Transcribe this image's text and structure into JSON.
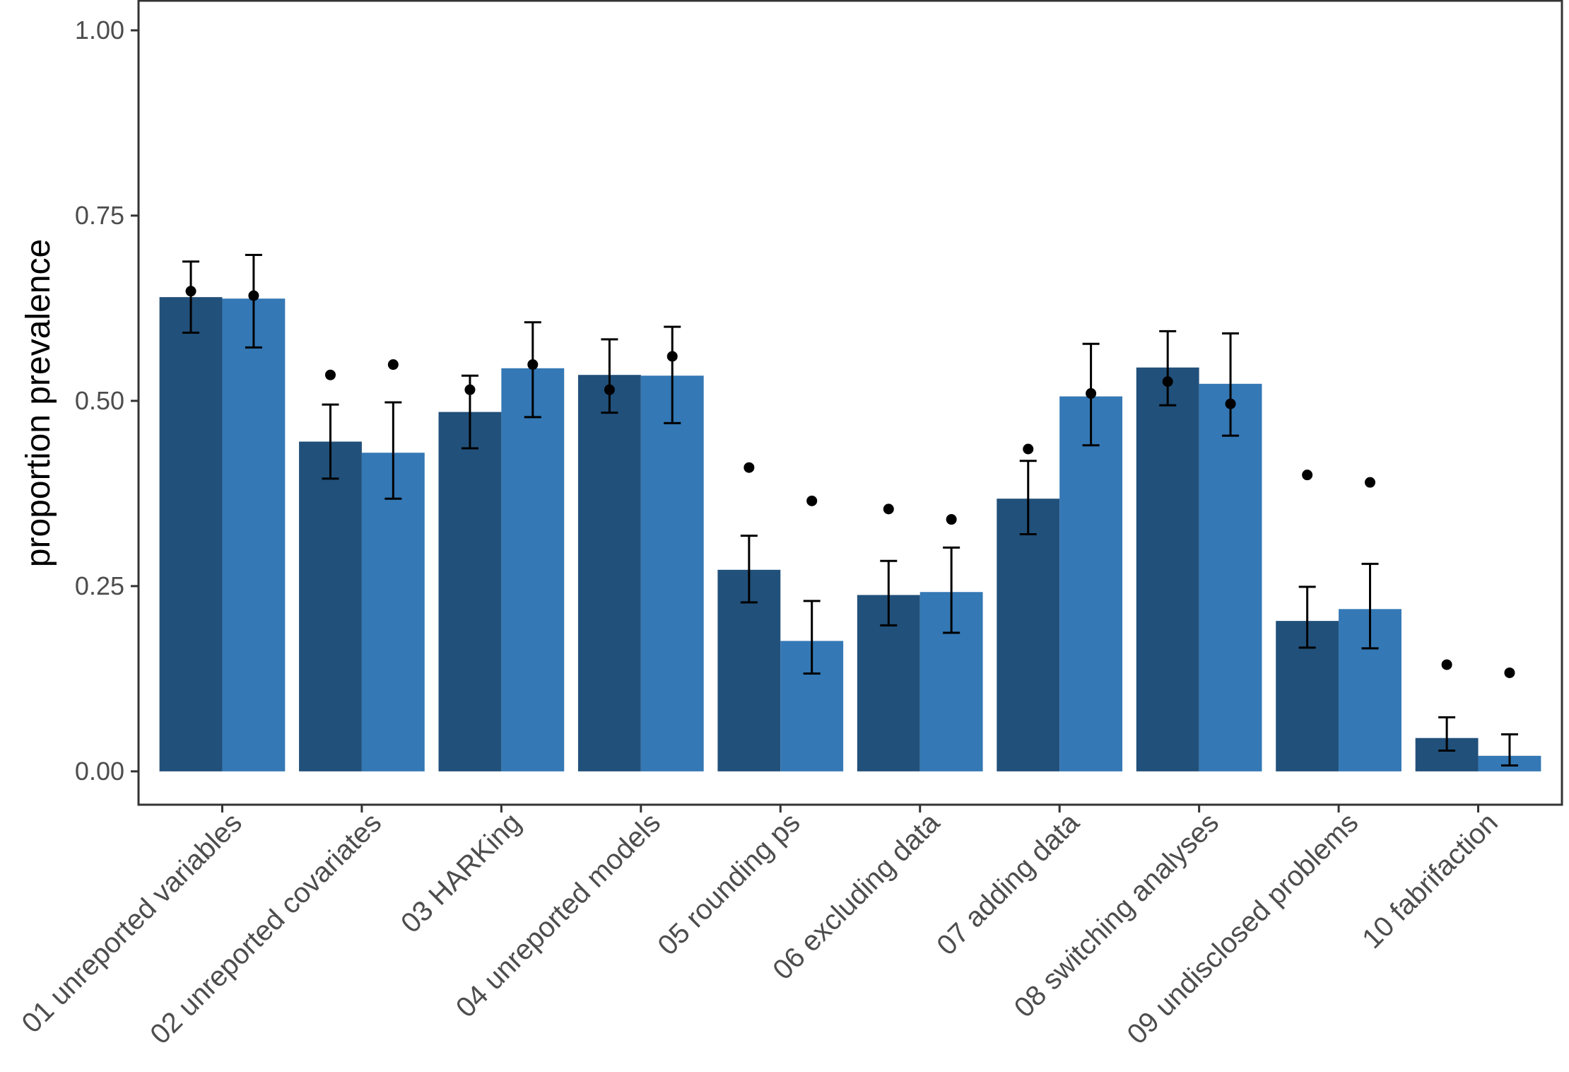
{
  "chart_data": {
    "type": "bar",
    "ylabel": "proportion prevalence",
    "xlabel": "",
    "ylim": [
      -0.045,
      1.04
    ],
    "yticks": [
      0.0,
      0.25,
      0.5,
      0.75,
      1.0
    ],
    "ytick_labels": [
      "0.00",
      "0.25",
      "0.50",
      "0.75",
      "1.00"
    ],
    "grid": false,
    "legend": "none",
    "categories": [
      "01 unreported variables",
      "02 unreported covariates",
      "03 HARKing",
      "04 unreported models",
      "05 rounding ps",
      "06 excluding data",
      "07 adding data",
      "08 switching analyses",
      "09 undisclosed problems",
      "10 fabrifaction"
    ],
    "series": [
      {
        "color": "#21507a",
        "values": [
          0.64,
          0.445,
          0.485,
          0.535,
          0.272,
          0.238,
          0.368,
          0.545,
          0.203,
          0.045
        ],
        "error_low": [
          0.592,
          0.395,
          0.436,
          0.484,
          0.228,
          0.197,
          0.32,
          0.494,
          0.167,
          0.028
        ],
        "error_high": [
          0.688,
          0.495,
          0.534,
          0.583,
          0.318,
          0.284,
          0.419,
          0.594,
          0.249,
          0.073
        ],
        "points": [
          0.648,
          0.535,
          0.515,
          0.515,
          0.41,
          0.354,
          0.435,
          0.526,
          0.4,
          0.144
        ]
      },
      {
        "color": "#3478b5",
        "values": [
          0.638,
          0.43,
          0.544,
          0.534,
          0.176,
          0.242,
          0.506,
          0.523,
          0.219,
          0.021
        ],
        "error_low": [
          0.572,
          0.368,
          0.478,
          0.47,
          0.132,
          0.187,
          0.44,
          0.453,
          0.166,
          0.008
        ],
        "error_high": [
          0.697,
          0.498,
          0.606,
          0.6,
          0.23,
          0.302,
          0.577,
          0.591,
          0.28,
          0.05
        ],
        "points": [
          0.642,
          0.549,
          0.549,
          0.56,
          0.365,
          0.34,
          0.51,
          0.496,
          0.39,
          0.133
        ]
      }
    ]
  }
}
